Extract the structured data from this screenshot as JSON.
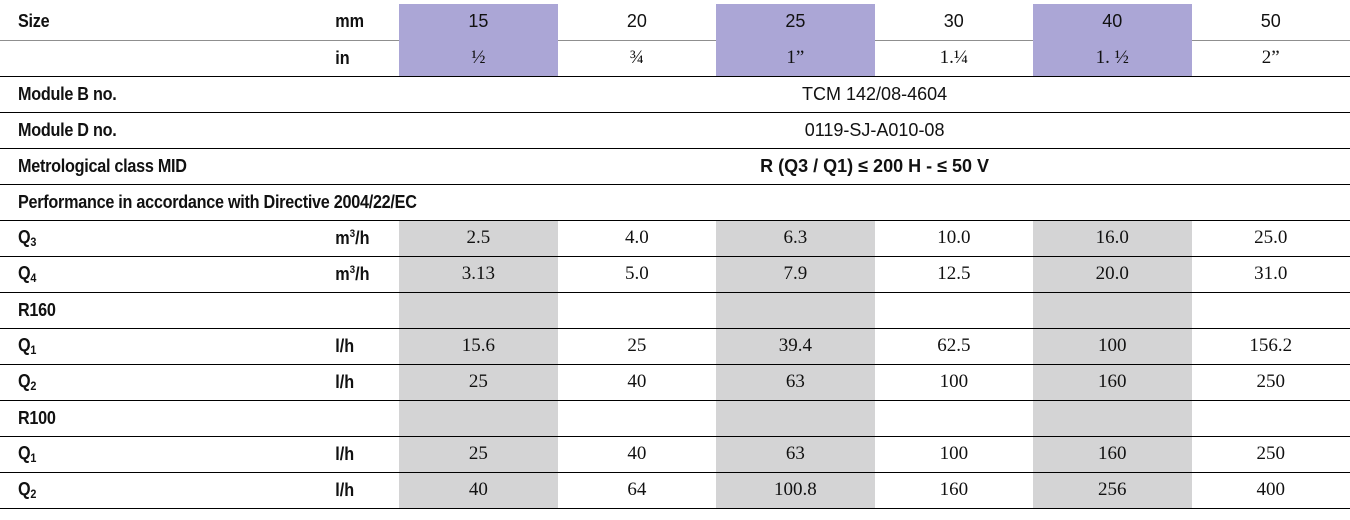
{
  "size": {
    "label": "Size",
    "unit_mm": "mm",
    "unit_in": "in",
    "mm": [
      "15",
      "20",
      "25",
      "30",
      "40",
      "50"
    ],
    "in": [
      "½",
      "¾",
      "1”",
      "1.¼",
      "1. ½",
      "2”"
    ]
  },
  "module_b": {
    "label": "Module B no.",
    "value": "TCM 142/08-4604"
  },
  "module_d": {
    "label": "Module D no.",
    "value": "0119-SJ-A010-08"
  },
  "metrological": {
    "label": "Metrological class MID",
    "value": "R (Q3 / Q1) ≤ 200 H - ≤ 50 V"
  },
  "performance": {
    "label": "Performance in accordance with Directive 2004/22/EC"
  },
  "q3": {
    "letter": "Q",
    "sub": "3",
    "unit_base": "m",
    "unit_sup": "3",
    "unit_tail": "/h",
    "values": [
      "2.5",
      "4.0",
      "6.3",
      "10.0",
      "16.0",
      "25.0"
    ]
  },
  "q4": {
    "letter": "Q",
    "sub": "4",
    "unit_base": "m",
    "unit_sup": "3",
    "unit_tail": "/h",
    "values": [
      "3.13",
      "5.0",
      "7.9",
      "12.5",
      "20.0",
      "31.0"
    ]
  },
  "r160": {
    "label": "R160",
    "q1": {
      "letter": "Q",
      "sub": "1",
      "unit": "l/h",
      "values": [
        "15.6",
        "25",
        "39.4",
        "62.5",
        "100",
        "156.2"
      ]
    },
    "q2": {
      "letter": "Q",
      "sub": "2",
      "unit": "l/h",
      "values": [
        "25",
        "40",
        "63",
        "100",
        "160",
        "250"
      ]
    }
  },
  "r100": {
    "label": "R100",
    "q1": {
      "letter": "Q",
      "sub": "1",
      "unit": "l/h",
      "values": [
        "25",
        "40",
        "63",
        "100",
        "160",
        "250"
      ]
    },
    "q2": {
      "letter": "Q",
      "sub": "2",
      "unit": "l/h",
      "values": [
        "40",
        "64",
        "100.8",
        "160",
        "256",
        "400"
      ]
    }
  },
  "colors": {
    "highlight_size": "#ABA6D6",
    "highlight_values": "#D4D4D5",
    "rule": "#000000"
  }
}
